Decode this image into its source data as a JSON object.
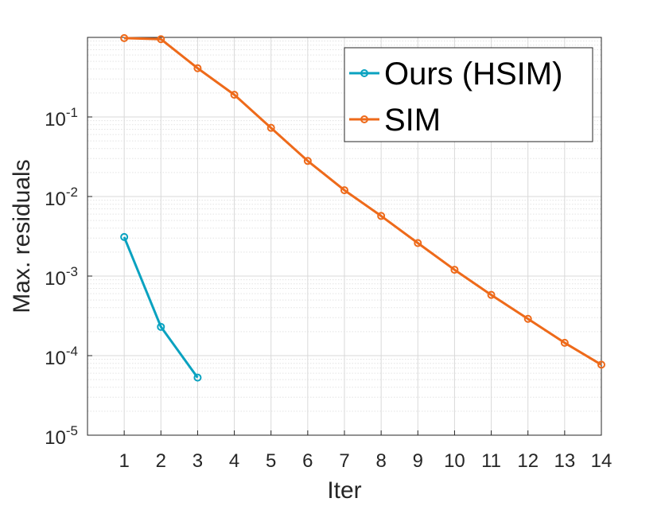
{
  "chart_data": {
    "type": "line",
    "xlabel": "Iter",
    "ylabel": "Max. residuals",
    "xlim": [
      0,
      14
    ],
    "ylim": [
      1e-05,
      1
    ],
    "yscale": "log",
    "grid": true,
    "minor_grid": true,
    "legend_position": "top-right",
    "x_ticks": [
      "1",
      "2",
      "3",
      "4",
      "5",
      "6",
      "7",
      "8",
      "9",
      "10",
      "11",
      "12",
      "13",
      "14"
    ],
    "y_ticks": [
      {
        "base": "10",
        "exp": "-5"
      },
      {
        "base": "10",
        "exp": "-4"
      },
      {
        "base": "10",
        "exp": "-3"
      },
      {
        "base": "10",
        "exp": "-2"
      },
      {
        "base": "10",
        "exp": "-1"
      }
    ],
    "series": [
      {
        "name": "Ours (HSIM)",
        "color": "#0AA2C0",
        "x": [
          1,
          2,
          3
        ],
        "y": [
          0.0031,
          0.00023,
          5.3e-05
        ]
      },
      {
        "name": "SIM",
        "color": "#EE6A1A",
        "x": [
          1,
          2,
          3,
          4,
          5,
          6,
          7,
          8,
          9,
          10,
          11,
          12,
          13,
          14
        ],
        "y": [
          0.98,
          0.95,
          0.41,
          0.19,
          0.073,
          0.028,
          0.012,
          0.0057,
          0.0026,
          0.0012,
          0.00058,
          0.00029,
          0.000145,
          7.7e-05
        ]
      }
    ]
  }
}
